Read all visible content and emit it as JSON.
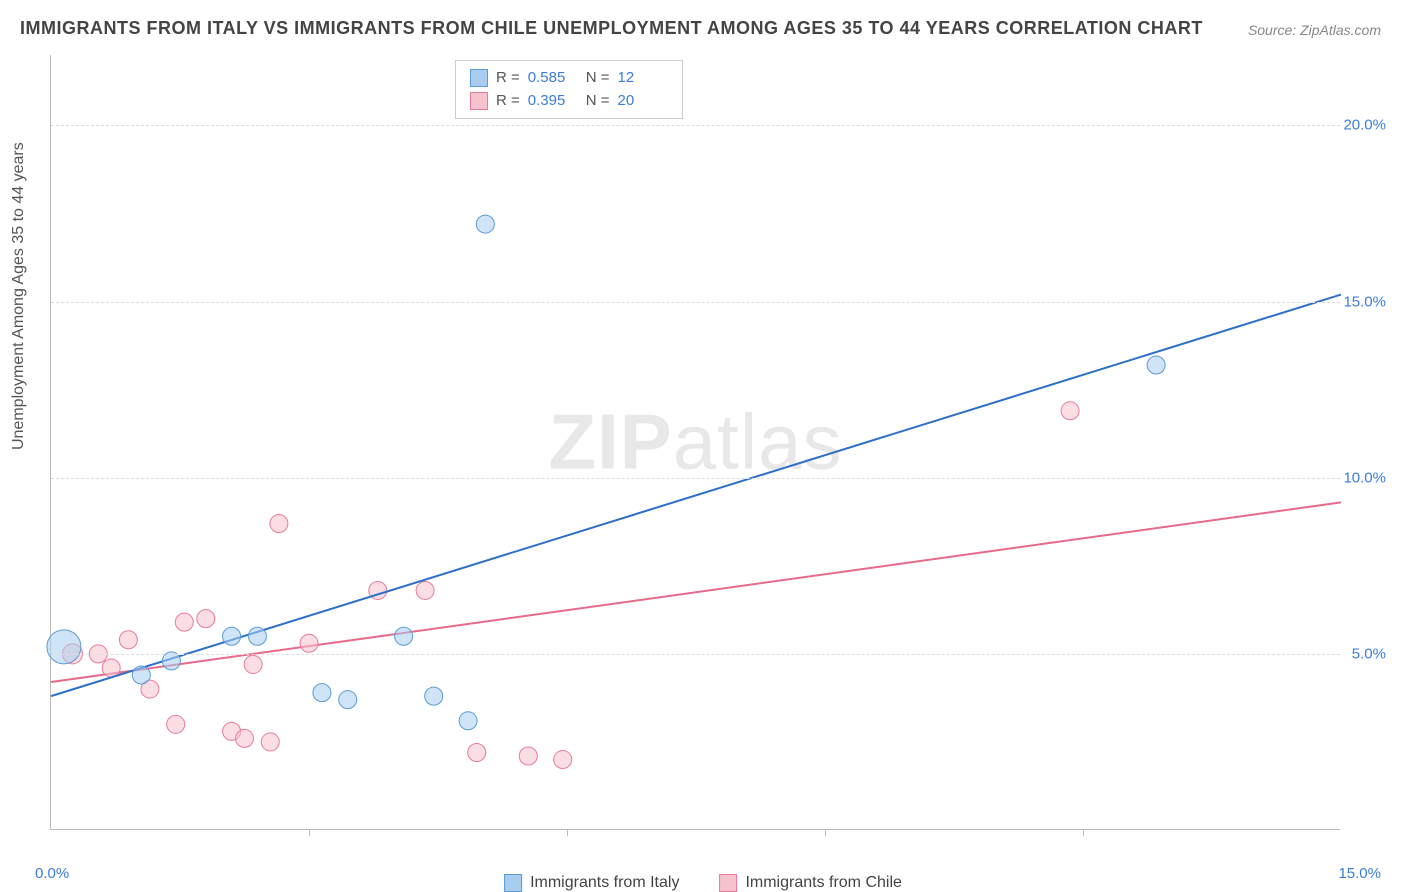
{
  "title": "IMMIGRANTS FROM ITALY VS IMMIGRANTS FROM CHILE UNEMPLOYMENT AMONG AGES 35 TO 44 YEARS CORRELATION CHART",
  "source": "Source: ZipAtlas.com",
  "y_axis_label": "Unemployment Among Ages 35 to 44 years",
  "watermark_part1": "ZIP",
  "watermark_part2": "atlas",
  "chart": {
    "type": "scatter-with-regression",
    "xlim": [
      0.0,
      15.0
    ],
    "ylim": [
      0.0,
      22.0
    ],
    "x_ticks": [
      0.0,
      15.0
    ],
    "x_tick_labels": [
      "0.0%",
      "15.0%"
    ],
    "x_minor_ticks_count": 5,
    "y_gridlines": [
      5.0,
      10.0,
      15.0,
      20.0
    ],
    "y_tick_labels": [
      "5.0%",
      "10.0%",
      "15.0%",
      "20.0%"
    ],
    "background_color": "#ffffff",
    "grid_color": "#dddddd",
    "grid_dash": "4,4",
    "axis_color": "#bbbbbb",
    "tick_label_color": "#3b7dd8",
    "tick_label_fontsize": 15,
    "title_fontsize": 18,
    "title_color": "#444444",
    "point_radius": 9,
    "point_opacity": 0.55,
    "line_width": 2
  },
  "series": {
    "italy": {
      "label": "Immigrants from Italy",
      "color_fill": "#a8cdf0",
      "color_stroke": "#5b9bd5",
      "line_color": "#2e6fc9",
      "R": "0.585",
      "N": "12",
      "points": [
        {
          "x": 0.15,
          "y": 5.2,
          "r": 17
        },
        {
          "x": 1.05,
          "y": 4.4,
          "r": 9
        },
        {
          "x": 1.4,
          "y": 4.8,
          "r": 9
        },
        {
          "x": 2.1,
          "y": 5.5,
          "r": 9
        },
        {
          "x": 2.4,
          "y": 5.5,
          "r": 9
        },
        {
          "x": 3.15,
          "y": 3.9,
          "r": 9
        },
        {
          "x": 3.45,
          "y": 3.7,
          "r": 9
        },
        {
          "x": 4.1,
          "y": 5.5,
          "r": 9
        },
        {
          "x": 4.45,
          "y": 3.8,
          "r": 9
        },
        {
          "x": 4.85,
          "y": 3.1,
          "r": 9
        },
        {
          "x": 5.05,
          "y": 17.2,
          "r": 9
        },
        {
          "x": 12.85,
          "y": 13.2,
          "r": 9
        }
      ],
      "regression": {
        "x1": 0.0,
        "y1": 3.8,
        "x2": 15.0,
        "y2": 15.2
      }
    },
    "chile": {
      "label": "Immigrants from Chile",
      "color_fill": "#f5c2cd",
      "color_stroke": "#e87b9a",
      "line_color": "#e76a8d",
      "R": "0.395",
      "N": "20",
      "points": [
        {
          "x": 0.25,
          "y": 5.0,
          "r": 10
        },
        {
          "x": 0.55,
          "y": 5.0,
          "r": 9
        },
        {
          "x": 0.7,
          "y": 4.6,
          "r": 9
        },
        {
          "x": 0.9,
          "y": 5.4,
          "r": 9
        },
        {
          "x": 1.15,
          "y": 4.0,
          "r": 9
        },
        {
          "x": 1.45,
          "y": 3.0,
          "r": 9
        },
        {
          "x": 1.55,
          "y": 5.9,
          "r": 9
        },
        {
          "x": 1.8,
          "y": 6.0,
          "r": 9
        },
        {
          "x": 2.1,
          "y": 2.8,
          "r": 9
        },
        {
          "x": 2.25,
          "y": 2.6,
          "r": 9
        },
        {
          "x": 2.35,
          "y": 4.7,
          "r": 9
        },
        {
          "x": 2.55,
          "y": 2.5,
          "r": 9
        },
        {
          "x": 2.65,
          "y": 8.7,
          "r": 9
        },
        {
          "x": 3.0,
          "y": 5.3,
          "r": 9
        },
        {
          "x": 3.8,
          "y": 6.8,
          "r": 9
        },
        {
          "x": 4.35,
          "y": 6.8,
          "r": 9
        },
        {
          "x": 4.95,
          "y": 2.2,
          "r": 9
        },
        {
          "x": 5.55,
          "y": 2.1,
          "r": 9
        },
        {
          "x": 5.95,
          "y": 2.0,
          "r": 9
        },
        {
          "x": 11.85,
          "y": 11.9,
          "r": 9
        }
      ],
      "regression": {
        "x1": 0.0,
        "y1": 4.2,
        "x2": 15.0,
        "y2": 9.3
      }
    }
  },
  "legend_top": {
    "R_label": "R =",
    "N_label": "N ="
  },
  "legend_bottom": {
    "italy_label": "Immigrants from Italy",
    "chile_label": "Immigrants from Chile"
  }
}
